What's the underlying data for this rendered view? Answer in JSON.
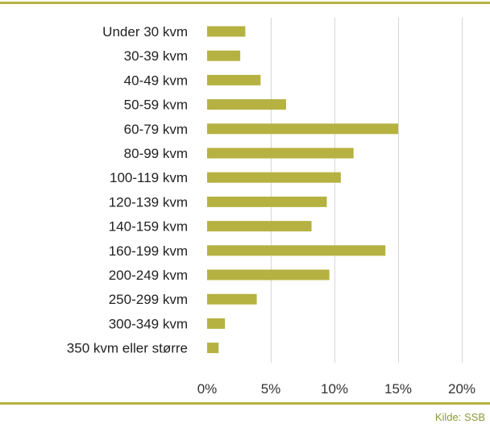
{
  "chart_data": {
    "type": "bar",
    "orientation": "horizontal",
    "categories": [
      "Under 30 kvm",
      "30-39 kvm",
      "40-49 kvm",
      "50-59 kvm",
      "60-79 kvm",
      "80-99 kvm",
      "100-119 kvm",
      "120-139 kvm",
      "140-159 kvm",
      "160-199 kvm",
      "200-249 kvm",
      "250-299 kvm",
      "300-349 kvm",
      "350 kvm eller større"
    ],
    "values": [
      3.0,
      2.6,
      4.2,
      6.2,
      15.0,
      11.5,
      10.5,
      9.4,
      8.2,
      14.0,
      9.6,
      3.9,
      1.4,
      0.9
    ],
    "value_unit": "%",
    "xlim": [
      0,
      20
    ],
    "ticks": [
      0,
      5,
      10,
      15,
      20
    ],
    "tick_labels": [
      "0%",
      "5%",
      "10%",
      "15%",
      "20%"
    ],
    "grid": true,
    "bar_color": "#b5b242",
    "title": "",
    "xlabel": "",
    "ylabel": ""
  },
  "footer": {
    "source": "Kilde: SSB"
  },
  "colors": {
    "rule": "#b5b242",
    "source_text": "#8a9a3a"
  }
}
